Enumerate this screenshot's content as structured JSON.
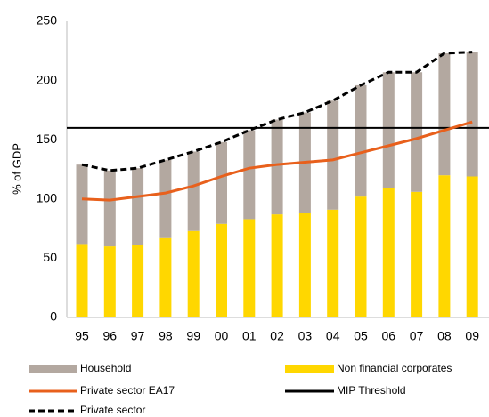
{
  "chart_data": {
    "type": "bar",
    "ylabel": "% of GDP",
    "categories": [
      "95",
      "96",
      "97",
      "98",
      "99",
      "00",
      "01",
      "02",
      "03",
      "04",
      "05",
      "06",
      "07",
      "08",
      "09"
    ],
    "series": [
      {
        "name": "Non financial corporates",
        "color": "#ffd700",
        "kind": "stack",
        "values": [
          62,
          60,
          61,
          67,
          73,
          79,
          83,
          87,
          88,
          91,
          102,
          109,
          106,
          120,
          119
        ]
      },
      {
        "name": "Household",
        "color": "#b3a8a0",
        "kind": "stack",
        "values": [
          67,
          64,
          65,
          66,
          67,
          69,
          75,
          80,
          85,
          92,
          94,
          98,
          101,
          103,
          105
        ]
      },
      {
        "name": "Private sector EA17",
        "color": "#e8601c",
        "kind": "line",
        "values": [
          100,
          99,
          102,
          105,
          111,
          119,
          126,
          129,
          131,
          133,
          139,
          145,
          151,
          158,
          165
        ]
      },
      {
        "name": "Private sector",
        "color": "#000000",
        "kind": "dashed",
        "values": [
          129,
          124,
          126,
          133,
          140,
          148,
          158,
          167,
          173,
          183,
          196,
          207,
          207,
          223,
          224
        ]
      }
    ],
    "threshold": {
      "name": "MIP Threshold",
      "value": 160,
      "color": "#000000"
    },
    "ylim": [
      0,
      250
    ],
    "yticks": [
      0,
      50,
      100,
      150,
      200,
      250
    ],
    "grid": false
  }
}
